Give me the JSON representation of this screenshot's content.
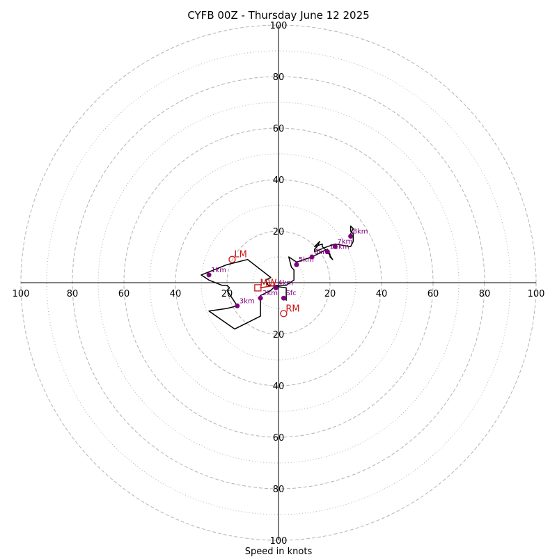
{
  "chart_data": {
    "type": "hodograph",
    "title": "CYFB 00Z - Thursday June 12 2025",
    "xlabel": "Speed in knots",
    "range": 100,
    "ring_major": [
      20,
      40,
      60,
      80,
      100
    ],
    "ring_minor": [
      10,
      30,
      50,
      70,
      90
    ],
    "axis_ticks": [
      20,
      40,
      60,
      80,
      100
    ],
    "colors": {
      "trace": "#000000",
      "height_marker": "#800080",
      "motion": "#cc1111",
      "ring": "#b3b3b3",
      "axis": "#000000"
    },
    "trace": [
      [
        3,
        -7
      ],
      [
        3,
        -2
      ],
      [
        -4,
        -1
      ],
      [
        -5,
        1
      ],
      [
        -3,
        2
      ],
      [
        -12,
        9
      ],
      [
        -20,
        7
      ],
      [
        -30,
        3
      ],
      [
        -27,
        1
      ],
      [
        -22,
        -1
      ],
      [
        -20,
        -1
      ],
      [
        -19,
        -2
      ],
      [
        -20,
        -3
      ],
      [
        -16,
        -9
      ],
      [
        -20,
        -10
      ],
      [
        -27,
        -11
      ],
      [
        -17,
        -18
      ],
      [
        -7,
        -13
      ],
      [
        -7,
        -6
      ],
      [
        -7,
        -5
      ],
      [
        -3,
        -3
      ],
      [
        -1,
        -1
      ],
      [
        3,
        -1
      ],
      [
        6,
        1
      ],
      [
        6,
        5
      ],
      [
        5,
        6
      ],
      [
        4,
        10
      ],
      [
        7,
        8
      ],
      [
        13,
        10
      ],
      [
        17,
        12
      ],
      [
        19,
        13
      ],
      [
        20,
        11
      ],
      [
        20,
        10
      ],
      [
        21,
        9
      ],
      [
        19,
        12
      ],
      [
        17,
        14
      ],
      [
        17,
        15
      ],
      [
        14,
        14
      ],
      [
        15,
        15
      ],
      [
        16,
        16
      ],
      [
        15,
        14
      ],
      [
        14,
        13
      ],
      [
        14,
        12
      ],
      [
        19,
        14
      ],
      [
        22,
        15
      ],
      [
        28,
        14
      ],
      [
        29,
        16
      ],
      [
        29,
        18
      ],
      [
        29,
        19
      ],
      [
        28,
        20
      ],
      [
        28,
        22
      ],
      [
        29,
        21
      ],
      [
        28,
        19
      ],
      [
        29,
        18
      ]
    ],
    "height_markers": [
      {
        "label": "Sfc",
        "u": 2,
        "v": -6
      },
      {
        "label": "1km",
        "u": -27,
        "v": 3
      },
      {
        "label": "2km",
        "u": -7,
        "v": -6
      },
      {
        "label": "3km",
        "u": -16,
        "v": -9
      },
      {
        "label": "4km",
        "u": -1,
        "v": -2
      },
      {
        "label": "5km",
        "u": 7,
        "v": 7
      },
      {
        "label": "6km",
        "u": 13,
        "v": 10
      },
      {
        "label": "7km",
        "u": 22,
        "v": 14
      },
      {
        "label": "8km",
        "u": 28,
        "v": 18
      },
      {
        "label": "11km",
        "u": 19,
        "v": 12
      }
    ],
    "storm_motion": [
      {
        "label": "LM",
        "u": -18,
        "v": 9,
        "marker": "circle"
      },
      {
        "label": "RM",
        "u": 2,
        "v": -12,
        "marker": "circle"
      },
      {
        "label": "MW",
        "u": -8,
        "v": -2,
        "marker": "square"
      }
    ]
  }
}
